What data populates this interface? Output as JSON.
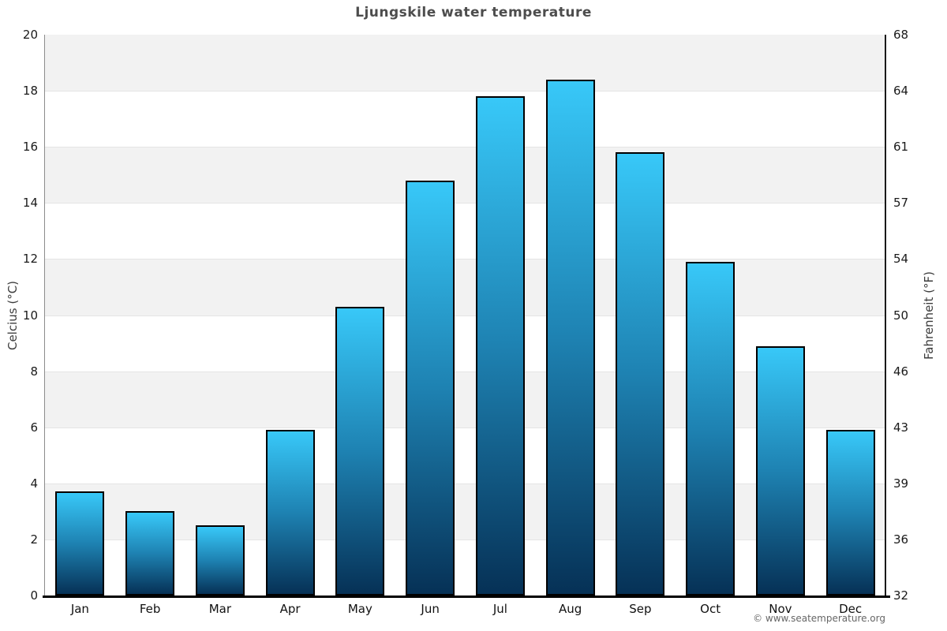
{
  "title": "Ljungskile water temperature",
  "axes": {
    "left_label": "Celcius (°C)",
    "right_label": "Fahrenheit (°F)"
  },
  "footer": {
    "copyright": "© www.seatemperature.org"
  },
  "chart_data": {
    "type": "bar",
    "title": "Ljungskile water temperature",
    "categories": [
      "Jan",
      "Feb",
      "Mar",
      "Apr",
      "May",
      "Jun",
      "Jul",
      "Aug",
      "Sep",
      "Oct",
      "Nov",
      "Dec"
    ],
    "series": [
      {
        "name": "Water temperature (°C)",
        "values": [
          3.7,
          3.0,
          2.5,
          5.9,
          10.3,
          14.8,
          17.8,
          18.4,
          15.8,
          11.9,
          8.9,
          5.9
        ]
      }
    ],
    "ylabel_left": "Celcius (°C)",
    "ylabel_right": "Fahrenheit (°F)",
    "ylim_celsius": [
      0,
      20
    ],
    "yticks_celsius": [
      0,
      2,
      4,
      6,
      8,
      10,
      12,
      14,
      16,
      18,
      20
    ],
    "yticks_fahrenheit": [
      32,
      36,
      39,
      43,
      46,
      50,
      54,
      57,
      61,
      64,
      68
    ],
    "legend": "none",
    "grid": "alternating-horizontal-bands",
    "colors": {
      "bar_gradient_top": "#38c8f8",
      "bar_gradient_mid": "#1e82b2",
      "bar_gradient_bottom": "#063156",
      "bar_border": "#000000",
      "band_gray": "#f2f2f2",
      "band_white": "#ffffff",
      "gridline": "#e4e4e4",
      "title_color": "#4d4d4d",
      "copyright_color": "#666666"
    }
  }
}
